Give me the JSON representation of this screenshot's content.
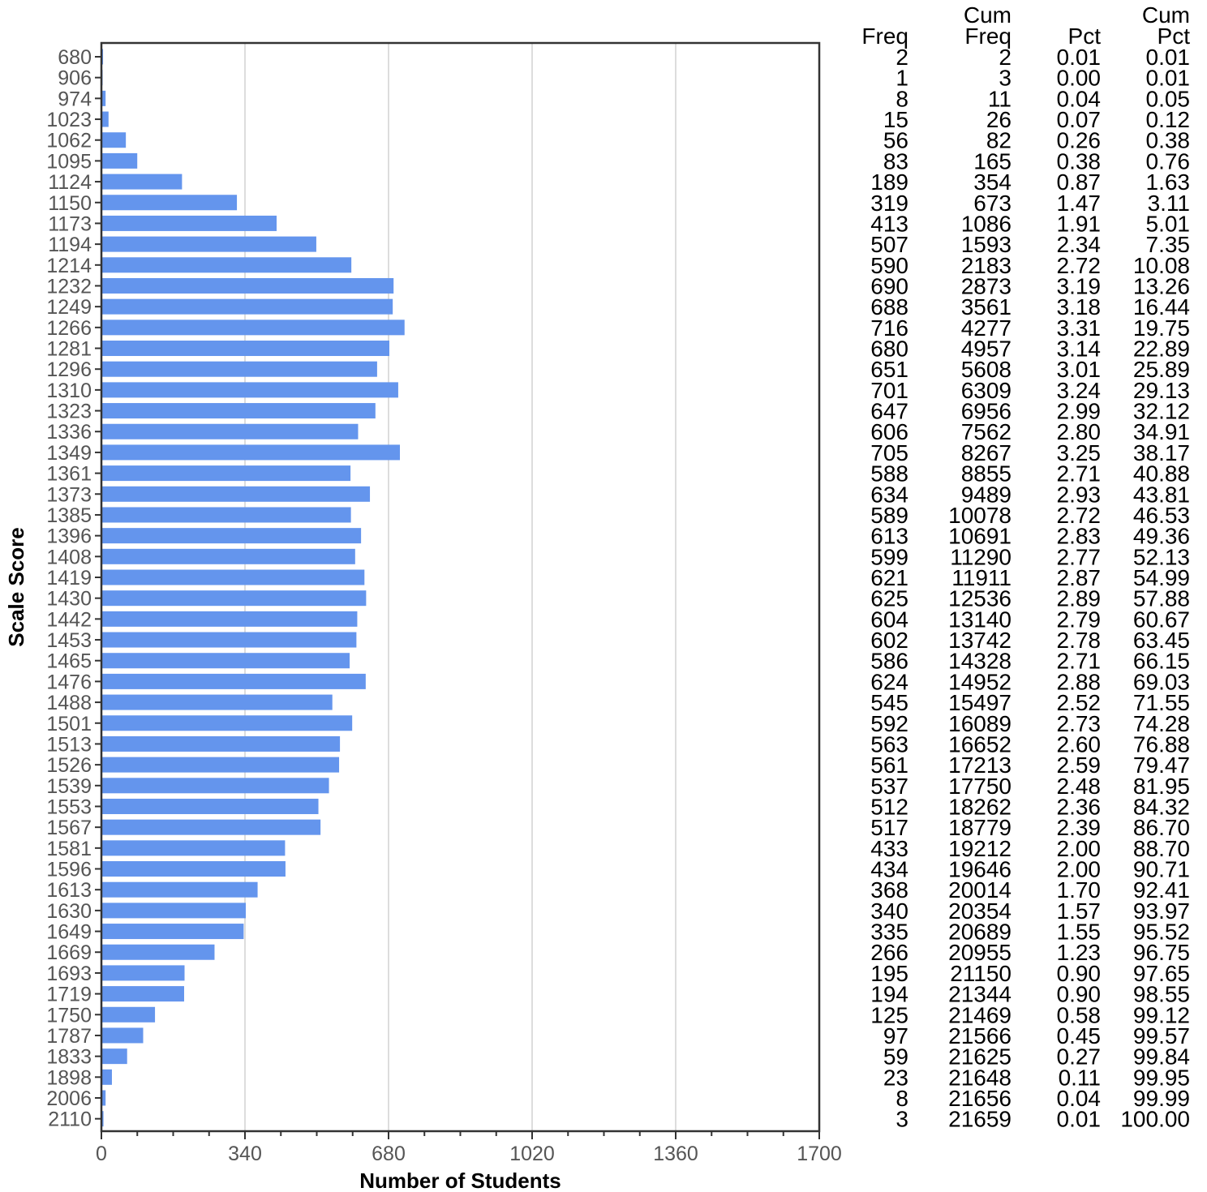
{
  "chart_data": {
    "type": "bar",
    "orientation": "horizontal",
    "xlabel": "Number of Students",
    "ylabel": "Scale Score",
    "xlim": [
      0,
      1700
    ],
    "xticks": [
      0,
      340,
      680,
      1020,
      1360,
      1700
    ],
    "grid": "vertical",
    "bar_color": "#6495ed",
    "categories": [
      "680",
      "906",
      "974",
      "1023",
      "1062",
      "1095",
      "1124",
      "1150",
      "1173",
      "1194",
      "1214",
      "1232",
      "1249",
      "1266",
      "1281",
      "1296",
      "1310",
      "1323",
      "1336",
      "1349",
      "1361",
      "1373",
      "1385",
      "1396",
      "1408",
      "1419",
      "1430",
      "1442",
      "1453",
      "1465",
      "1476",
      "1488",
      "1501",
      "1513",
      "1526",
      "1539",
      "1553",
      "1567",
      "1581",
      "1596",
      "1613",
      "1630",
      "1649",
      "1669",
      "1693",
      "1719",
      "1750",
      "1787",
      "1833",
      "1898",
      "2006",
      "2110"
    ],
    "values": [
      2,
      1,
      8,
      15,
      56,
      83,
      189,
      319,
      413,
      507,
      590,
      690,
      688,
      716,
      680,
      651,
      701,
      647,
      606,
      705,
      588,
      634,
      589,
      613,
      599,
      621,
      625,
      604,
      602,
      586,
      624,
      545,
      592,
      563,
      561,
      537,
      512,
      517,
      433,
      434,
      368,
      340,
      335,
      266,
      195,
      194,
      125,
      97,
      59,
      23,
      8,
      3
    ],
    "table": {
      "headers": [
        {
          "line1": "",
          "line2": "Freq"
        },
        {
          "line1": "Cum",
          "line2": "Freq"
        },
        {
          "line1": "",
          "line2": "Pct"
        },
        {
          "line1": "Cum",
          "line2": "Pct"
        }
      ],
      "rows": [
        [
          "2",
          "2",
          "0.01",
          "0.01"
        ],
        [
          "1",
          "3",
          "0.00",
          "0.01"
        ],
        [
          "8",
          "11",
          "0.04",
          "0.05"
        ],
        [
          "15",
          "26",
          "0.07",
          "0.12"
        ],
        [
          "56",
          "82",
          "0.26",
          "0.38"
        ],
        [
          "83",
          "165",
          "0.38",
          "0.76"
        ],
        [
          "189",
          "354",
          "0.87",
          "1.63"
        ],
        [
          "319",
          "673",
          "1.47",
          "3.11"
        ],
        [
          "413",
          "1086",
          "1.91",
          "5.01"
        ],
        [
          "507",
          "1593",
          "2.34",
          "7.35"
        ],
        [
          "590",
          "2183",
          "2.72",
          "10.08"
        ],
        [
          "690",
          "2873",
          "3.19",
          "13.26"
        ],
        [
          "688",
          "3561",
          "3.18",
          "16.44"
        ],
        [
          "716",
          "4277",
          "3.31",
          "19.75"
        ],
        [
          "680",
          "4957",
          "3.14",
          "22.89"
        ],
        [
          "651",
          "5608",
          "3.01",
          "25.89"
        ],
        [
          "701",
          "6309",
          "3.24",
          "29.13"
        ],
        [
          "647",
          "6956",
          "2.99",
          "32.12"
        ],
        [
          "606",
          "7562",
          "2.80",
          "34.91"
        ],
        [
          "705",
          "8267",
          "3.25",
          "38.17"
        ],
        [
          "588",
          "8855",
          "2.71",
          "40.88"
        ],
        [
          "634",
          "9489",
          "2.93",
          "43.81"
        ],
        [
          "589",
          "10078",
          "2.72",
          "46.53"
        ],
        [
          "613",
          "10691",
          "2.83",
          "49.36"
        ],
        [
          "599",
          "11290",
          "2.77",
          "52.13"
        ],
        [
          "621",
          "11911",
          "2.87",
          "54.99"
        ],
        [
          "625",
          "12536",
          "2.89",
          "57.88"
        ],
        [
          "604",
          "13140",
          "2.79",
          "60.67"
        ],
        [
          "602",
          "13742",
          "2.78",
          "63.45"
        ],
        [
          "586",
          "14328",
          "2.71",
          "66.15"
        ],
        [
          "624",
          "14952",
          "2.88",
          "69.03"
        ],
        [
          "545",
          "15497",
          "2.52",
          "71.55"
        ],
        [
          "592",
          "16089",
          "2.73",
          "74.28"
        ],
        [
          "563",
          "16652",
          "2.60",
          "76.88"
        ],
        [
          "561",
          "17213",
          "2.59",
          "79.47"
        ],
        [
          "537",
          "17750",
          "2.48",
          "81.95"
        ],
        [
          "512",
          "18262",
          "2.36",
          "84.32"
        ],
        [
          "517",
          "18779",
          "2.39",
          "86.70"
        ],
        [
          "433",
          "19212",
          "2.00",
          "88.70"
        ],
        [
          "434",
          "19646",
          "2.00",
          "90.71"
        ],
        [
          "368",
          "20014",
          "1.70",
          "92.41"
        ],
        [
          "340",
          "20354",
          "1.57",
          "93.97"
        ],
        [
          "335",
          "20689",
          "1.55",
          "95.52"
        ],
        [
          "266",
          "20955",
          "1.23",
          "96.75"
        ],
        [
          "195",
          "21150",
          "0.90",
          "97.65"
        ],
        [
          "194",
          "21344",
          "0.90",
          "98.55"
        ],
        [
          "125",
          "21469",
          "0.58",
          "99.12"
        ],
        [
          "97",
          "21566",
          "0.45",
          "99.57"
        ],
        [
          "59",
          "21625",
          "0.27",
          "99.84"
        ],
        [
          "23",
          "21648",
          "0.11",
          "99.95"
        ],
        [
          "8",
          "21656",
          "0.04",
          "99.99"
        ],
        [
          "3",
          "21659",
          "0.01",
          "100.00"
        ]
      ]
    }
  }
}
